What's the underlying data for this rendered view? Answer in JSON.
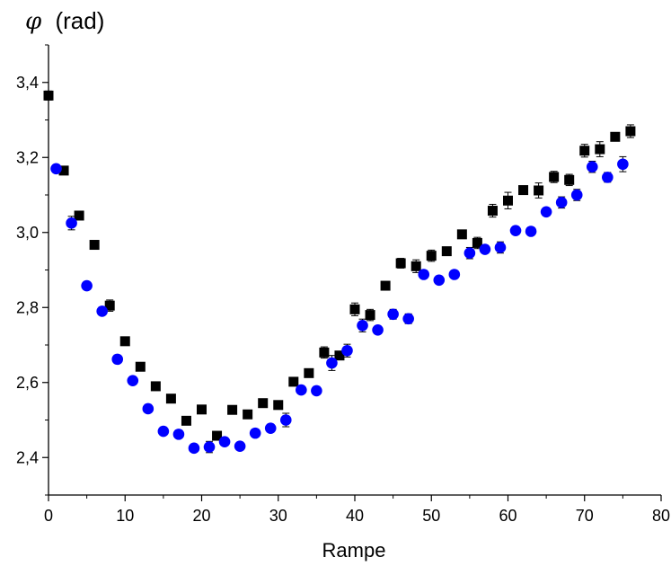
{
  "chart_data": {
    "type": "scatter",
    "title": "",
    "xlabel": "Rampe",
    "ylabel_symbol": "φ",
    "ylabel_unit": "(rad)",
    "xlim": [
      0,
      80
    ],
    "ylim": [
      2.3,
      3.5
    ],
    "xticks": [
      0,
      10,
      20,
      30,
      40,
      50,
      60,
      70,
      80
    ],
    "xtick_labels": [
      "0",
      "10",
      "20",
      "30",
      "40",
      "50",
      "60",
      "70",
      "80"
    ],
    "yticks": [
      2.4,
      2.6,
      2.8,
      3.0,
      3.2,
      3.4
    ],
    "ytick_labels": [
      "2,4",
      "2,6",
      "2,8",
      "3,0",
      "3,2",
      "3,4"
    ],
    "grid": false,
    "legend": "none",
    "series": [
      {
        "marker": "square",
        "color": "#000000",
        "x": [
          0,
          2,
          4,
          6,
          8,
          10,
          12,
          14,
          16,
          18,
          20,
          22,
          24,
          26,
          28,
          30,
          32,
          34,
          36,
          38,
          40,
          42,
          44,
          46,
          48,
          50,
          52,
          54,
          56,
          58,
          60,
          62,
          64,
          66,
          68,
          70,
          72,
          74,
          76
        ],
        "y": [
          3.365,
          3.165,
          3.045,
          2.967,
          2.805,
          2.71,
          2.642,
          2.59,
          2.557,
          2.498,
          2.528,
          2.458,
          2.527,
          2.515,
          2.545,
          2.54,
          2.602,
          2.625,
          2.68,
          2.672,
          2.795,
          2.78,
          2.858,
          2.918,
          2.91,
          2.938,
          2.95,
          2.995,
          2.972,
          3.058,
          3.085,
          3.113,
          3.112,
          3.148,
          3.14,
          3.218,
          3.222,
          3.255,
          3.27
        ],
        "err": [
          0.012,
          0.008,
          0.008,
          0.008,
          0.015,
          0.008,
          0.008,
          0.008,
          0.008,
          0.008,
          0.008,
          0.008,
          0.008,
          0.008,
          0.008,
          0.008,
          0.008,
          0.008,
          0.015,
          0.008,
          0.017,
          0.015,
          0.008,
          0.013,
          0.017,
          0.015,
          0.008,
          0.008,
          0.015,
          0.017,
          0.022,
          0.008,
          0.02,
          0.015,
          0.015,
          0.017,
          0.02,
          0.008,
          0.017
        ]
      },
      {
        "marker": "circle",
        "color": "#0000ff",
        "x": [
          1,
          3,
          5,
          7,
          9,
          11,
          13,
          15,
          17,
          19,
          21,
          23,
          25,
          27,
          29,
          31,
          33,
          35,
          37,
          39,
          41,
          43,
          45,
          47,
          49,
          51,
          53,
          55,
          57,
          59,
          61,
          63,
          65,
          67,
          69,
          71,
          73,
          75
        ],
        "y": [
          3.17,
          3.025,
          2.858,
          2.79,
          2.662,
          2.605,
          2.53,
          2.47,
          2.462,
          2.425,
          2.428,
          2.442,
          2.43,
          2.465,
          2.478,
          2.5,
          2.58,
          2.578,
          2.652,
          2.685,
          2.752,
          2.74,
          2.782,
          2.77,
          2.888,
          2.873,
          2.888,
          2.945,
          2.955,
          2.96,
          3.005,
          3.003,
          3.055,
          3.08,
          3.1,
          3.175,
          3.147,
          3.182
        ],
        "err": [
          0.01,
          0.018,
          0.01,
          0.01,
          0.01,
          0.01,
          0.01,
          0.01,
          0.01,
          0.01,
          0.015,
          0.01,
          0.01,
          0.01,
          0.01,
          0.018,
          0.01,
          0.01,
          0.02,
          0.017,
          0.017,
          0.01,
          0.013,
          0.013,
          0.01,
          0.01,
          0.01,
          0.015,
          0.01,
          0.015,
          0.01,
          0.01,
          0.01,
          0.015,
          0.015,
          0.015,
          0.013,
          0.02
        ]
      }
    ]
  }
}
